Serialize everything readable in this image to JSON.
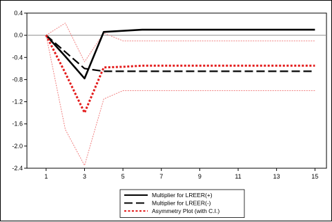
{
  "chart_data": {
    "type": "line",
    "x": [
      1,
      2,
      3,
      4,
      5,
      6,
      7,
      8,
      9,
      10,
      11,
      12,
      13,
      14,
      15
    ],
    "xticks": [
      "1",
      "3",
      "5",
      "7",
      "9",
      "11",
      "13",
      "15"
    ],
    "yticks": [
      "0.4",
      "0.0",
      "-0.4",
      "-0.8",
      "-1.2",
      "-1.6",
      "-2.0",
      "-2.4"
    ],
    "ylim": [
      -2.4,
      0.4
    ],
    "xlim": [
      0,
      15.6
    ],
    "zero_line": true,
    "grid": false,
    "legend_position": "bottom-center",
    "series": [
      {
        "name": "Multiplier for LREER(+)",
        "style": "solid",
        "color": "#000000",
        "values": [
          0.0,
          -0.38,
          -0.78,
          0.06,
          0.08,
          0.1,
          0.1,
          0.1,
          0.1,
          0.1,
          0.1,
          0.1,
          0.1,
          0.1,
          0.1
        ]
      },
      {
        "name": "Multiplier for LREER(-)",
        "style": "longdash",
        "color": "#000000",
        "values": [
          0.0,
          -0.3,
          -0.6,
          -0.65,
          -0.65,
          -0.65,
          -0.65,
          -0.65,
          -0.65,
          -0.65,
          -0.65,
          -0.65,
          -0.65,
          -0.65,
          -0.65
        ]
      },
      {
        "name": "Asymmetry Plot (with C.I.)",
        "style": "dotted",
        "color": "#e31b1b",
        "values": [
          0.0,
          -0.68,
          -1.4,
          -0.58,
          -0.57,
          -0.55,
          -0.55,
          -0.55,
          -0.55,
          -0.55,
          -0.55,
          -0.55,
          -0.55,
          -0.55,
          -0.55
        ]
      },
      {
        "name": "",
        "style": "ci",
        "color": "#f08080",
        "values": [
          0.0,
          0.22,
          -0.48,
          0.04,
          -0.1,
          -0.1,
          -0.1,
          -0.1,
          -0.1,
          -0.1,
          -0.1,
          -0.1,
          -0.1,
          -0.1,
          -0.1
        ]
      },
      {
        "name": "",
        "style": "ci",
        "color": "#f08080",
        "values": [
          0.0,
          -1.7,
          -2.35,
          -1.15,
          -1.0,
          -1.0,
          -1.0,
          -1.0,
          -1.0,
          -1.0,
          -1.0,
          -1.0,
          -1.0,
          -1.0,
          -1.0
        ]
      }
    ]
  }
}
